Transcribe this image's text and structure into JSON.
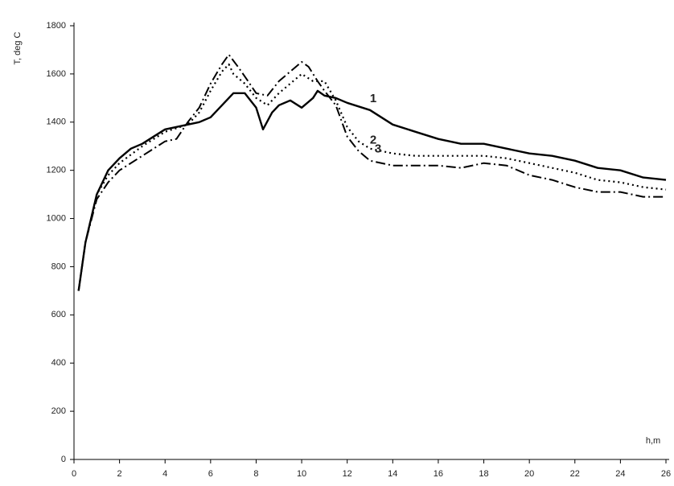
{
  "chart_data": {
    "type": "line",
    "y_label": "T, deg C",
    "x_label": "h,m",
    "xlim": [
      0,
      26
    ],
    "xticks": [
      0,
      2,
      4,
      6,
      8,
      10,
      12,
      14,
      16,
      18,
      20,
      22,
      24,
      26
    ],
    "ylim": [
      0,
      1800
    ],
    "yticks": [
      0,
      200,
      400,
      600,
      800,
      1000,
      1200,
      1400,
      1600,
      1800
    ],
    "grid": false,
    "series": [
      {
        "name": "1",
        "color": "#000000",
        "style": "solid",
        "x": [
          0.2,
          0.5,
          1,
          1.5,
          2,
          2.5,
          3,
          3.5,
          4,
          4.5,
          5,
          5.5,
          6,
          6.5,
          7,
          7.5,
          8,
          8.3,
          8.7,
          9,
          9.5,
          10,
          10.5,
          10.7,
          11,
          11.5,
          12,
          13,
          14,
          15,
          16,
          17,
          18,
          19,
          20,
          21,
          22,
          23,
          24,
          25,
          26
        ],
        "values": [
          700,
          900,
          1100,
          1200,
          1250,
          1290,
          1310,
          1340,
          1370,
          1380,
          1390,
          1400,
          1420,
          1470,
          1520,
          1520,
          1460,
          1370,
          1440,
          1470,
          1490,
          1460,
          1500,
          1530,
          1510,
          1500,
          1480,
          1450,
          1390,
          1360,
          1330,
          1310,
          1310,
          1290,
          1270,
          1260,
          1240,
          1210,
          1200,
          1170,
          1160
        ]
      },
      {
        "name": "2",
        "color": "#000000",
        "style": "dotted",
        "x": [
          0.2,
          0.5,
          1,
          1.5,
          2,
          3,
          4,
          5,
          5.5,
          6,
          6.5,
          6.8,
          7,
          7.5,
          8,
          8.5,
          9,
          9.5,
          10,
          10.5,
          11,
          11.5,
          12,
          12.5,
          13,
          14,
          15,
          16,
          18,
          19,
          20,
          21,
          22,
          23,
          24,
          25,
          26
        ],
        "values": [
          700,
          900,
          1100,
          1180,
          1230,
          1300,
          1360,
          1390,
          1440,
          1530,
          1610,
          1640,
          1600,
          1560,
          1500,
          1470,
          1520,
          1560,
          1600,
          1570,
          1570,
          1490,
          1380,
          1320,
          1290,
          1270,
          1260,
          1260,
          1260,
          1250,
          1230,
          1210,
          1190,
          1160,
          1150,
          1130,
          1120
        ]
      },
      {
        "name": "3",
        "color": "#000000",
        "style": "dashdot",
        "x": [
          0.2,
          0.5,
          1,
          1.5,
          2,
          3,
          4,
          4.5,
          5,
          5.5,
          6,
          6.5,
          6.8,
          7.2,
          7.5,
          8,
          8.5,
          9,
          9.5,
          10,
          10.3,
          10.7,
          11,
          11.5,
          12,
          12.5,
          13,
          14,
          15,
          16,
          17,
          18,
          19,
          20,
          21,
          22,
          23,
          24,
          25,
          26
        ],
        "values": [
          700,
          900,
          1080,
          1150,
          1200,
          1260,
          1320,
          1330,
          1400,
          1460,
          1560,
          1640,
          1680,
          1630,
          1590,
          1520,
          1510,
          1570,
          1610,
          1650,
          1630,
          1570,
          1530,
          1470,
          1340,
          1280,
          1240,
          1220,
          1220,
          1220,
          1210,
          1230,
          1220,
          1180,
          1160,
          1130,
          1110,
          1110,
          1090,
          1090
        ]
      }
    ]
  }
}
